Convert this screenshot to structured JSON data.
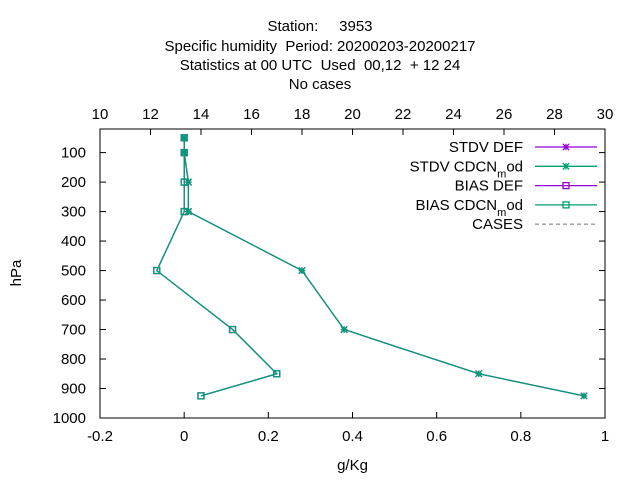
{
  "chart_data": {
    "type": "line",
    "title_lines": [
      "Station:     3953",
      "Specific humidity  Period: 20200203-20200217",
      "Statistics at 00 UTC  Used  00,12  + 12 24",
      "No cases"
    ],
    "xlabel": "g/Kg",
    "ylabel": "hPa",
    "xlim": [
      -0.2,
      1
    ],
    "x2lim": [
      10,
      30
    ],
    "ylim": [
      1000,
      20
    ],
    "y_reversed": true,
    "x_ticks": [
      "-0.2",
      "0",
      "0.2",
      "0.4",
      "0.6",
      "0.8",
      "1"
    ],
    "x2_ticks": [
      "10",
      "12",
      "14",
      "16",
      "18",
      "20",
      "22",
      "24",
      "26",
      "28",
      "30"
    ],
    "y_ticks": [
      "100",
      "200",
      "300",
      "400",
      "500",
      "600",
      "700",
      "800",
      "900",
      "1000"
    ],
    "grid": false,
    "legend_position": "top-right",
    "series": [
      {
        "name": "STDV DEF",
        "color": "#9400d3",
        "marker": "star",
        "points": [
          [
            0.0,
            50
          ],
          [
            0.0,
            100
          ],
          [
            0.01,
            200
          ],
          [
            0.01,
            300
          ],
          [
            0.28,
            500
          ],
          [
            0.38,
            700
          ],
          [
            0.7,
            850
          ],
          [
            0.95,
            925
          ]
        ]
      },
      {
        "name": "STDV CDCN_mod",
        "color": "#009e73",
        "marker": "star",
        "points": [
          [
            0.0,
            50
          ],
          [
            0.0,
            100
          ],
          [
            0.01,
            200
          ],
          [
            0.01,
            300
          ],
          [
            0.28,
            500
          ],
          [
            0.38,
            700
          ],
          [
            0.7,
            850
          ],
          [
            0.95,
            925
          ]
        ]
      },
      {
        "name": "BIAS DEF",
        "color": "#9400d3",
        "marker": "square",
        "points": [
          [
            0.0,
            50
          ],
          [
            0.0,
            100
          ],
          [
            0.0,
            200
          ],
          [
            0.0,
            300
          ],
          [
            -0.065,
            500
          ],
          [
            0.115,
            700
          ],
          [
            0.22,
            850
          ],
          [
            0.04,
            925
          ]
        ]
      },
      {
        "name": "BIAS CDCN_mod",
        "color": "#009e73",
        "marker": "square",
        "points": [
          [
            0.0,
            50
          ],
          [
            0.0,
            100
          ],
          [
            0.0,
            200
          ],
          [
            0.0,
            300
          ],
          [
            -0.065,
            500
          ],
          [
            0.115,
            700
          ],
          [
            0.22,
            850
          ],
          [
            0.04,
            925
          ]
        ]
      },
      {
        "name": "CASES",
        "color": "#999999",
        "marker": "none",
        "dashed": true,
        "points": []
      }
    ]
  }
}
